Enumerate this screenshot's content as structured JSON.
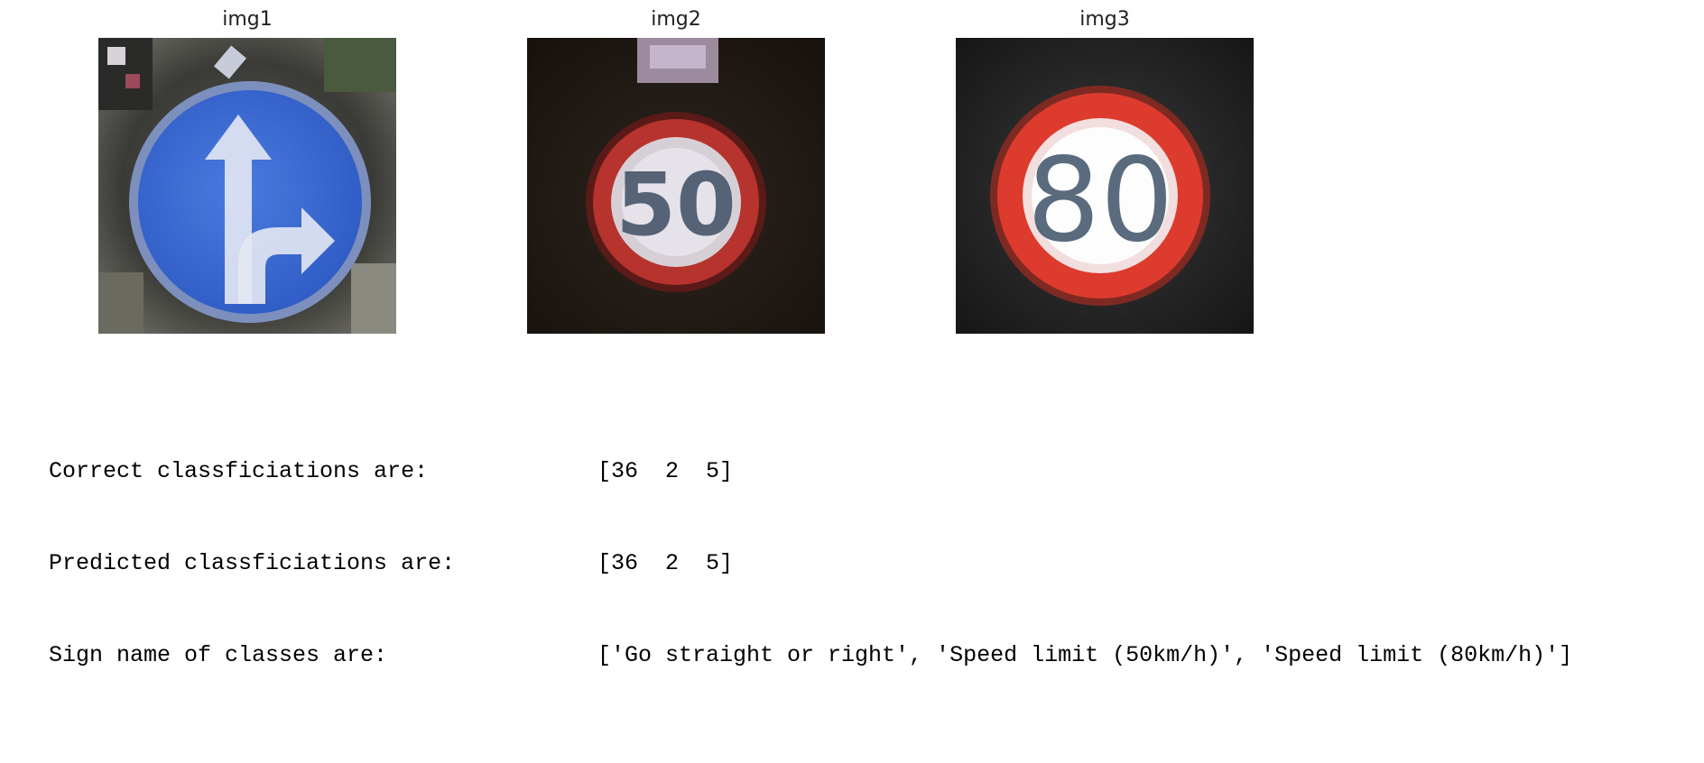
{
  "images": [
    {
      "title": "img1",
      "icon": "go-straight-or-right-sign-icon"
    },
    {
      "title": "img2",
      "icon": "speed-limit-50-sign-icon",
      "sign_text": "50"
    },
    {
      "title": "img3",
      "icon": "speed-limit-80-sign-icon",
      "sign_text": "80"
    }
  ],
  "output": {
    "rows": [
      {
        "label": "Correct classficiations are:",
        "value": "[36  2  5]"
      },
      {
        "label": "Predicted classficiations are:",
        "value": "[36  2  5]"
      },
      {
        "label": "Sign name of classes are:",
        "value": "['Go straight or right', 'Speed limit (50km/h)', 'Speed limit (80km/h)']"
      }
    ]
  },
  "colors": {
    "sign_blue": "#3d6ed6",
    "sign_red": "#d93a2e",
    "background_dark": "#1c1712"
  }
}
